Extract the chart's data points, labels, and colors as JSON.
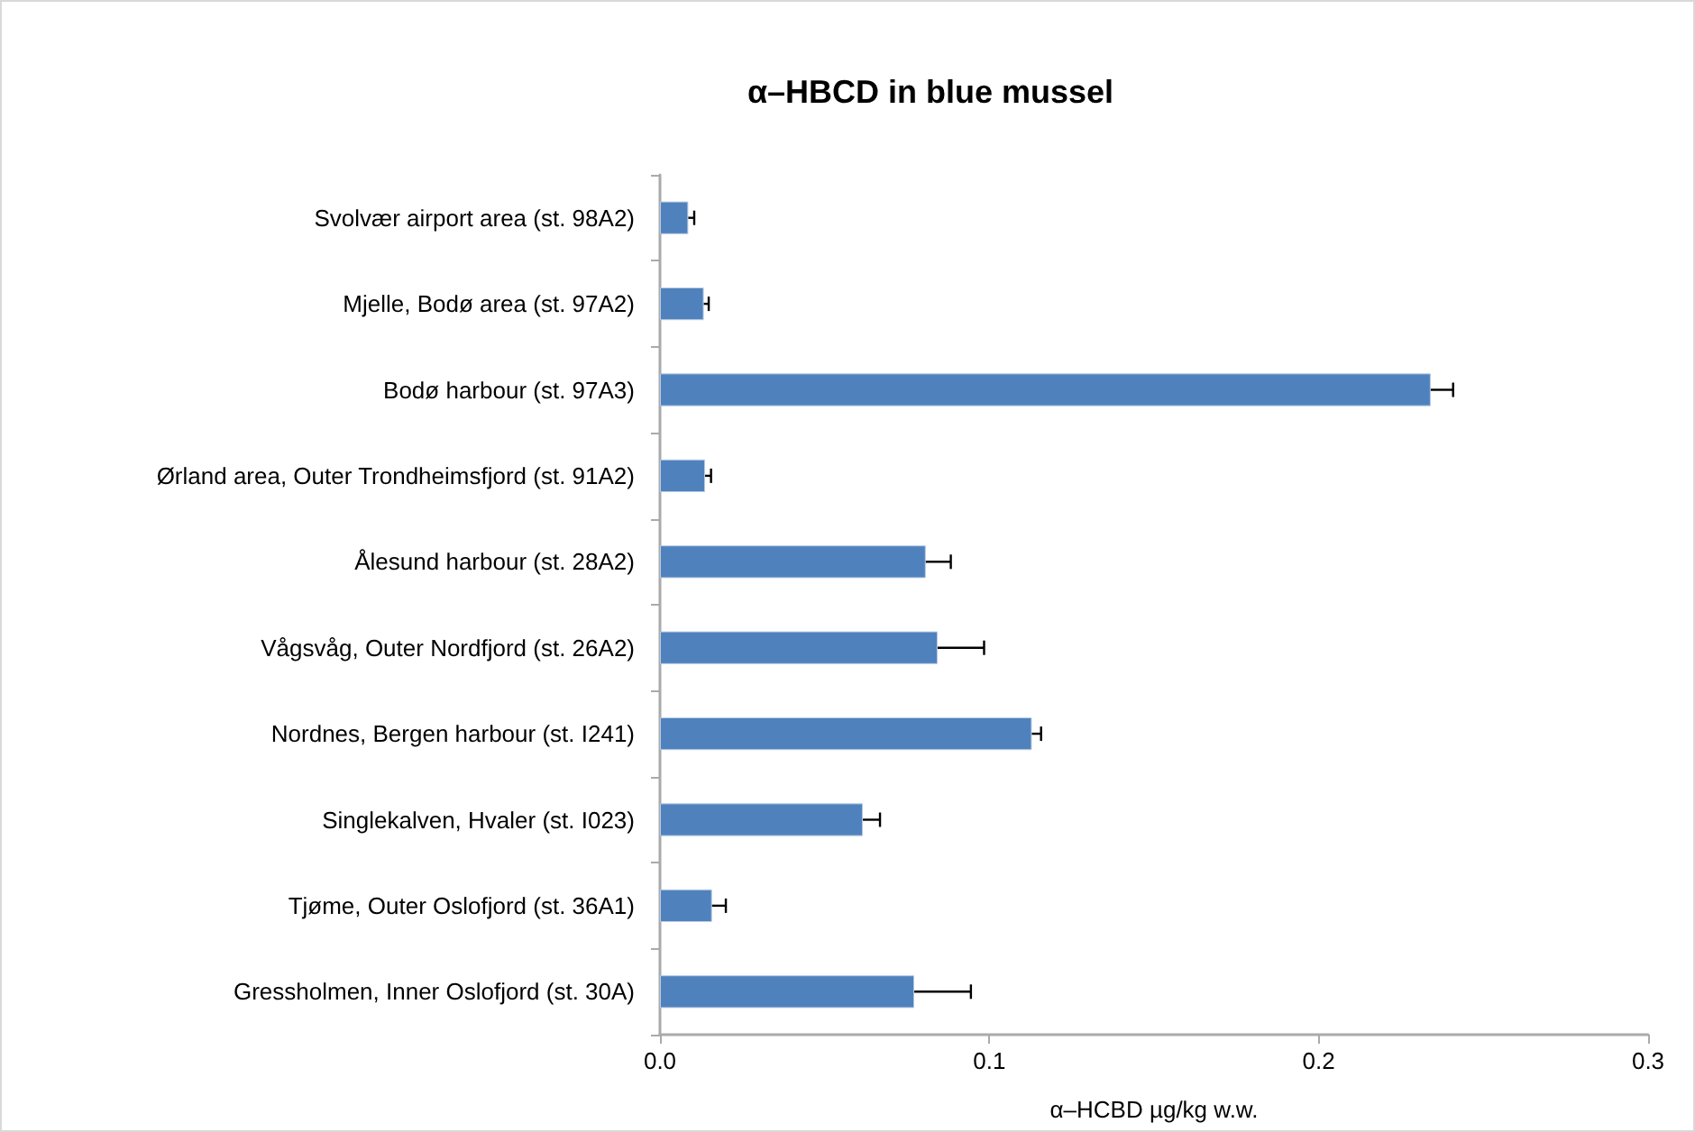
{
  "chart_data": {
    "type": "bar",
    "orientation": "horizontal",
    "title": "α–HBCD in blue mussel",
    "xlabel": "α–HCBD µg/kg w.w.",
    "categories": [
      "Svolvær airport area (st. 98A2)",
      "Mjelle, Bodø area (st. 97A2)",
      "Bodø harbour (st. 97A3)",
      "Ørland area, Outer Trondheimsfjord (st. 91A2)",
      "Ålesund harbour (st. 28A2)",
      "Vågsvåg, Outer Nordfjord (st. 26A2)",
      "Nordnes, Bergen harbour (st. I241)",
      "Singlekalven, Hvaler (st. I023)",
      "Tjøme, Outer Oslofjord (st. 36A1)",
      "Gressholmen, Inner Oslofjord (st. 30A)"
    ],
    "values": [
      0.0086,
      0.0133,
      0.234,
      0.0137,
      0.0807,
      0.0843,
      0.1129,
      0.0616,
      0.0158,
      0.0772
    ],
    "errors": [
      [
        0.0086,
        0.0104
      ],
      [
        0.0133,
        0.0148
      ],
      [
        0.234,
        0.2408
      ],
      [
        0.0137,
        0.0155
      ],
      [
        0.0807,
        0.0883
      ],
      [
        0.0843,
        0.0984
      ],
      [
        0.1129,
        0.1157
      ],
      [
        0.0616,
        0.0668
      ],
      [
        0.0158,
        0.02
      ],
      [
        0.0772,
        0.0944
      ]
    ],
    "color": "#4f81bd",
    "xlim": [
      0,
      0.3
    ],
    "xticks": [
      {
        "value": 0,
        "label": "0.0"
      },
      {
        "value": 0.1,
        "label": "0.1"
      },
      {
        "value": 0.2,
        "label": "0.2"
      },
      {
        "value": 0.3,
        "label": "0.3"
      }
    ],
    "grid": false
  }
}
